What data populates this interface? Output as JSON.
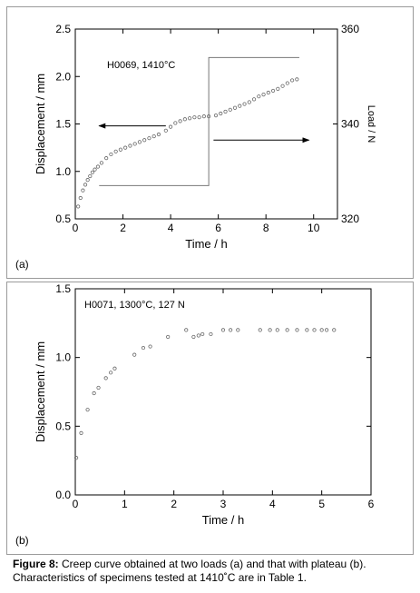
{
  "chart_data": [
    {
      "type": "scatter",
      "panel_label": "(a)",
      "annotation": "H0069, 1410°C",
      "xlabel": "Time / h",
      "ylabel": "Displacement / mm",
      "y2label": "Load / N",
      "xlim": [
        0,
        11
      ],
      "ylim": [
        0.5,
        2.5
      ],
      "y2lim": [
        320,
        360
      ],
      "xticks": [
        "0",
        "2",
        "4",
        "6",
        "8",
        "10"
      ],
      "yticks": [
        "0.5",
        "1.0",
        "1.5",
        "2.0",
        "2.5"
      ],
      "y2ticks": [
        "320",
        "340",
        "360"
      ],
      "grid": false,
      "series": [
        {
          "axis": "left",
          "marker": "open-circle",
          "x": [
            0.12,
            0.22,
            0.32,
            0.42,
            0.52,
            0.62,
            0.72,
            0.82,
            0.95,
            1.1,
            1.3,
            1.5,
            1.7,
            1.9,
            2.1,
            2.3,
            2.5,
            2.7,
            2.9,
            3.1,
            3.3,
            3.5,
            3.8,
            4.0,
            4.2,
            4.4,
            4.6,
            4.8,
            5.0,
            5.2,
            5.4,
            5.6,
            5.9,
            6.1,
            6.3,
            6.5,
            6.7,
            6.9,
            7.1,
            7.3,
            7.5,
            7.7,
            7.9,
            8.1,
            8.3,
            8.5,
            8.7,
            8.9,
            9.1,
            9.3
          ],
          "y": [
            0.63,
            0.72,
            0.8,
            0.86,
            0.91,
            0.95,
            0.99,
            1.02,
            1.05,
            1.09,
            1.14,
            1.18,
            1.21,
            1.23,
            1.25,
            1.27,
            1.29,
            1.31,
            1.33,
            1.35,
            1.37,
            1.39,
            1.43,
            1.47,
            1.51,
            1.53,
            1.55,
            1.56,
            1.57,
            1.57,
            1.58,
            1.58,
            1.59,
            1.61,
            1.63,
            1.65,
            1.67,
            1.69,
            1.71,
            1.73,
            1.76,
            1.79,
            1.81,
            1.83,
            1.85,
            1.87,
            1.9,
            1.93,
            1.96,
            1.97
          ]
        },
        {
          "axis": "right",
          "marker": "line",
          "x": [
            1.0,
            5.6,
            5.6,
            9.4
          ],
          "y": [
            327,
            327,
            354,
            354
          ]
        }
      ],
      "arrows": [
        {
          "direction": "left",
          "x_from": 3.8,
          "x_to": 1.0,
          "y": 1.48
        },
        {
          "direction": "right",
          "x_from": 5.8,
          "x_to": 9.8,
          "y": 1.33
        }
      ]
    },
    {
      "type": "scatter",
      "panel_label": "(b)",
      "annotation": "H0071, 1300°C, 127 N",
      "xlabel": "Time / h",
      "ylabel": "Displacement / mm",
      "xlim": [
        0,
        6
      ],
      "ylim": [
        0.0,
        1.5
      ],
      "xticks": [
        "0",
        "1",
        "2",
        "3",
        "4",
        "5",
        "6"
      ],
      "yticks": [
        "0.0",
        "0.5",
        "1.0",
        "1.5"
      ],
      "grid": false,
      "series": [
        {
          "marker": "open-circle",
          "x": [
            0.02,
            0.12,
            0.25,
            0.38,
            0.47,
            0.62,
            0.72,
            0.8,
            1.2,
            1.38,
            1.52,
            1.88,
            2.25,
            2.4,
            2.5,
            2.58,
            2.75,
            3.0,
            3.15,
            3.3,
            3.75,
            3.95,
            4.1,
            4.3,
            4.5,
            4.7,
            4.85,
            5.0,
            5.1,
            5.25
          ],
          "y": [
            0.27,
            0.45,
            0.62,
            0.74,
            0.78,
            0.85,
            0.89,
            0.92,
            1.02,
            1.07,
            1.08,
            1.15,
            1.2,
            1.15,
            1.16,
            1.17,
            1.17,
            1.2,
            1.2,
            1.2,
            1.2,
            1.2,
            1.2,
            1.2,
            1.2,
            1.2,
            1.2,
            1.2,
            1.2,
            1.2
          ]
        }
      ]
    }
  ],
  "caption": {
    "bold": "Figure 8:",
    "text": " Creep curve obtained at two loads (a) and that with plateau (b). Characteristics of specimens tested at 1410˚C are in Table 1."
  }
}
